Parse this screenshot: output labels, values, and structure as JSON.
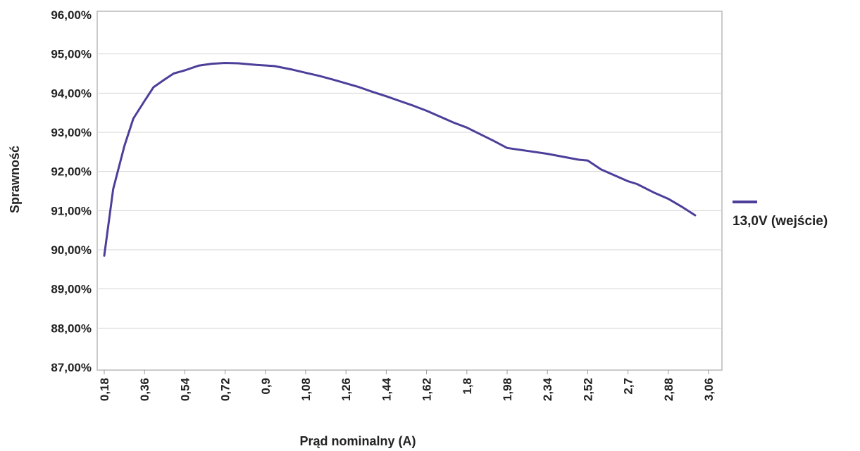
{
  "chart_data": {
    "type": "line",
    "title": "",
    "xlabel": "Prąd nominalny (A)",
    "ylabel": "Sprawność",
    "ylim": [
      87,
      96
    ],
    "y_ticks": [
      "87,00%",
      "88,00%",
      "89,00%",
      "90,00%",
      "91,00%",
      "92,00%",
      "93,00%",
      "94,00%",
      "95,00%",
      "96,00%"
    ],
    "x_ticks": [
      "0,18",
      "0,36",
      "0,54",
      "0,72",
      "0,9",
      "1,08",
      "1,26",
      "1,44",
      "1,62",
      "1,8",
      "1,98",
      "2,34",
      "2,52",
      "2,7",
      "2,88",
      "3,06"
    ],
    "grid": "horizontal",
    "legend_position": "right",
    "series": [
      {
        "name": "13,0V (wejście)",
        "color": "#4b3f9a",
        "x": [
          0.18,
          0.22,
          0.27,
          0.31,
          0.36,
          0.4,
          0.45,
          0.49,
          0.54,
          0.6,
          0.66,
          0.72,
          0.78,
          0.86,
          0.94,
          1.02,
          1.08,
          1.14,
          1.2,
          1.26,
          1.32,
          1.38,
          1.44,
          1.5,
          1.56,
          1.62,
          1.68,
          1.74,
          1.8,
          1.86,
          1.92,
          1.98,
          2.34,
          2.48,
          2.52,
          2.58,
          2.7,
          2.74,
          2.82,
          2.88,
          2.94,
          3.0
        ],
        "y": [
          89.85,
          91.55,
          92.65,
          93.35,
          93.8,
          94.15,
          94.35,
          94.5,
          94.58,
          94.7,
          94.75,
          94.77,
          94.76,
          94.72,
          94.69,
          94.6,
          94.52,
          94.44,
          94.35,
          94.25,
          94.15,
          94.03,
          93.92,
          93.8,
          93.68,
          93.55,
          93.4,
          93.25,
          93.12,
          92.95,
          92.78,
          92.6,
          92.45,
          92.3,
          92.28,
          92.05,
          91.75,
          91.68,
          91.45,
          91.3,
          91.1,
          90.88
        ]
      }
    ]
  }
}
